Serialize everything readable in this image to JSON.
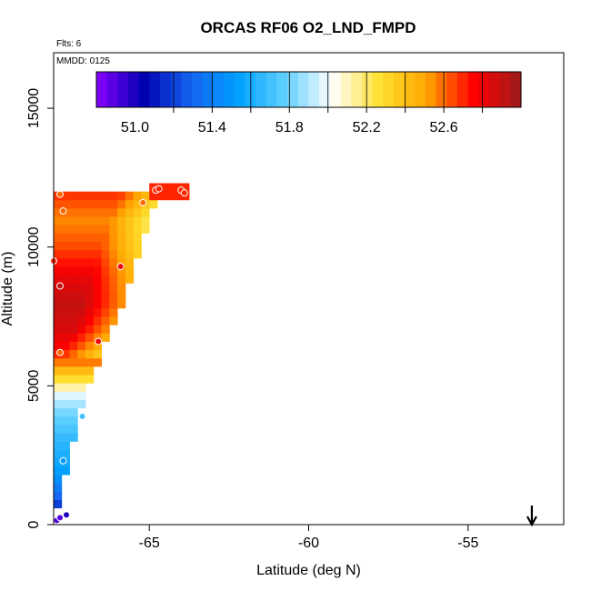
{
  "chart_data": {
    "type": "heatmap",
    "title": "ORCAS RF06 O2_LND_FMPD",
    "subtitle_flights": "Flts: 6",
    "subtitle_date": "MMDD: 0125",
    "xlabel": "Latitude (deg N)",
    "ylabel": "Altitude (m)",
    "xlim": [
      -68,
      -52
    ],
    "ylim": [
      0,
      17000
    ],
    "x_ticks": [
      -65,
      -60,
      -55
    ],
    "x_tick_labels": [
      "-65",
      "-60",
      "-55"
    ],
    "y_ticks": [
      0,
      5000,
      10000,
      15000
    ],
    "y_tick_labels": [
      "0",
      "5000",
      "10000",
      "15000"
    ],
    "colorbar": {
      "range": [
        50.8,
        53.0
      ],
      "ticks": [
        51.0,
        51.4,
        51.8,
        52.2,
        52.6
      ],
      "tick_labels": [
        "51.0",
        "51.4",
        "51.8",
        "52.2",
        "52.6"
      ],
      "colors": [
        "#8B00FF",
        "#0000B0",
        "#1565F0",
        "#00A0FF",
        "#60D0FF",
        "#FFFFFF",
        "#FFE030",
        "#FFA500",
        "#FF0000",
        "#9B1C1C"
      ]
    },
    "field": {
      "cell_lat": 0.25,
      "cell_alt": 300,
      "edge": {
        "lat": [
          -68.0,
          -67.0,
          -66.0,
          -65.3,
          -64.7
        ],
        "alt": [
          0,
          4800,
          7500,
          10000,
          12000
        ]
      },
      "cap": {
        "lat_min": -65.0,
        "lat_max": -63.8,
        "alt_min": 11700,
        "alt_max": 12300,
        "value": 52.7
      },
      "vertical_profile": {
        "alt": [
          0,
          600,
          1200,
          2000,
          3000,
          4000,
          4600,
          5000,
          5400,
          5800,
          6200,
          7000,
          8000,
          9000,
          10000,
          11000,
          12000
        ],
        "value": [
          50.95,
          51.15,
          51.35,
          51.55,
          51.65,
          51.8,
          51.95,
          52.15,
          52.35,
          52.55,
          52.72,
          52.85,
          52.9,
          52.8,
          52.65,
          52.55,
          52.7
        ]
      }
    },
    "observations": [
      {
        "lat": -67.9,
        "alt": 150,
        "value": 50.9
      },
      {
        "lat": -67.8,
        "alt": 250,
        "value": 50.9
      },
      {
        "lat": -67.6,
        "alt": 350,
        "value": 51.0
      },
      {
        "lat": -67.7,
        "alt": 2300,
        "value": 51.5
      },
      {
        "lat": -67.1,
        "alt": 3900,
        "value": 51.7
      },
      {
        "lat": -67.8,
        "alt": 6200,
        "value": 52.6
      },
      {
        "lat": -66.6,
        "alt": 6600,
        "value": 52.8
      },
      {
        "lat": -67.8,
        "alt": 8600,
        "value": 52.9
      },
      {
        "lat": -65.9,
        "alt": 9300,
        "value": 52.8
      },
      {
        "lat": -68.0,
        "alt": 9500,
        "value": 52.7
      },
      {
        "lat": -67.7,
        "alt": 11300,
        "value": 52.6
      },
      {
        "lat": -65.2,
        "alt": 11600,
        "value": 52.6
      },
      {
        "lat": -67.8,
        "alt": 11900,
        "value": 52.6
      },
      {
        "lat": -64.8,
        "alt": 12050,
        "value": 52.7
      },
      {
        "lat": -64.7,
        "alt": 12100,
        "value": 52.7
      },
      {
        "lat": -64.0,
        "alt": 12050,
        "value": 52.7
      },
      {
        "lat": -63.9,
        "alt": 11950,
        "value": 52.7
      }
    ],
    "arrow_marker": {
      "lat": -53.0,
      "direction": "down"
    },
    "grid": false,
    "legend": "top (horizontal colorbar)"
  }
}
